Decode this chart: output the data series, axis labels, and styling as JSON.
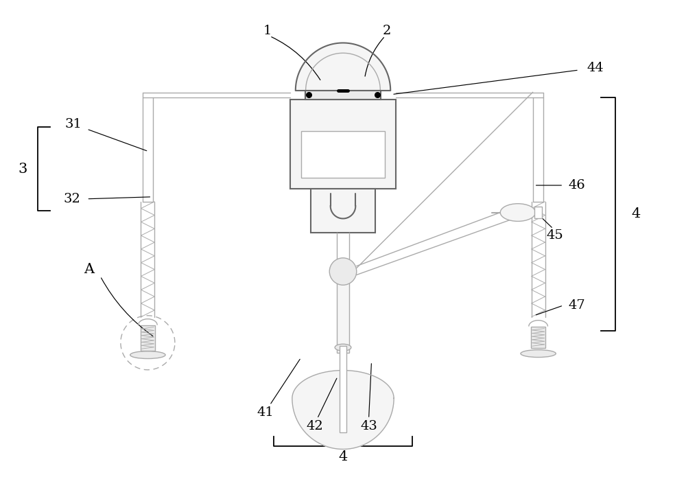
{
  "bg_color": "#ffffff",
  "line_color": "#aaaaaa",
  "dark_color": "#666666",
  "label_color": "#000000",
  "figsize": [
    10.0,
    7.11
  ],
  "dpi": 100,
  "fill_light": "#f5f5f5",
  "fill_med": "#ebebeb"
}
